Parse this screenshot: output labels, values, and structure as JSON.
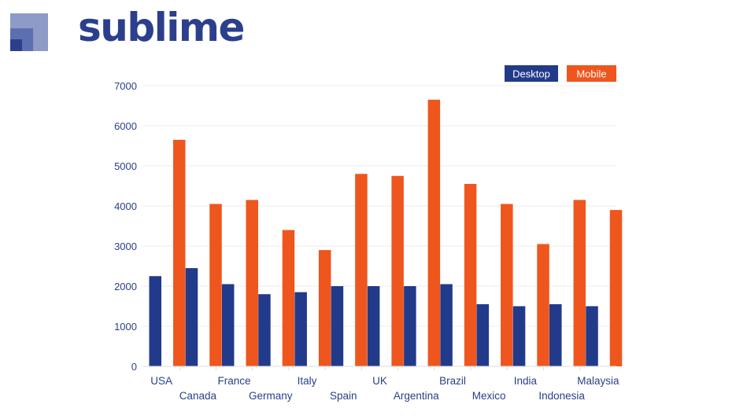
{
  "brand": {
    "name": "sublime",
    "colors": {
      "primary": "#2b3f8c",
      "light": "#8e9bc7",
      "mid": "#5d6fb1"
    }
  },
  "chart_data": {
    "type": "bar",
    "categories": [
      "USA",
      "Canada",
      "France",
      "Germany",
      "Italy",
      "Spain",
      "UK",
      "Argentina",
      "Brazil",
      "Mexico",
      "India",
      "Indonesia",
      "Malaysia"
    ],
    "series": [
      {
        "name": "Desktop",
        "color": "#223a8a",
        "values": [
          2250,
          2450,
          2050,
          1800,
          1850,
          2000,
          2000,
          2000,
          2050,
          1550,
          1500,
          1550,
          1500
        ]
      },
      {
        "name": "Mobile",
        "color": "#ee561e",
        "values": [
          5650,
          4050,
          4150,
          3400,
          2900,
          4800,
          4750,
          6650,
          4550,
          4050,
          3050,
          4150,
          3900
        ]
      }
    ],
    "ylim": [
      0,
      7000
    ],
    "yticks": [
      "0",
      "1000",
      "2000",
      "3000",
      "4000",
      "5000",
      "6000",
      "7000"
    ],
    "grid": true,
    "legend_position": "top-right",
    "title": "",
    "xlabel": "",
    "ylabel": ""
  }
}
